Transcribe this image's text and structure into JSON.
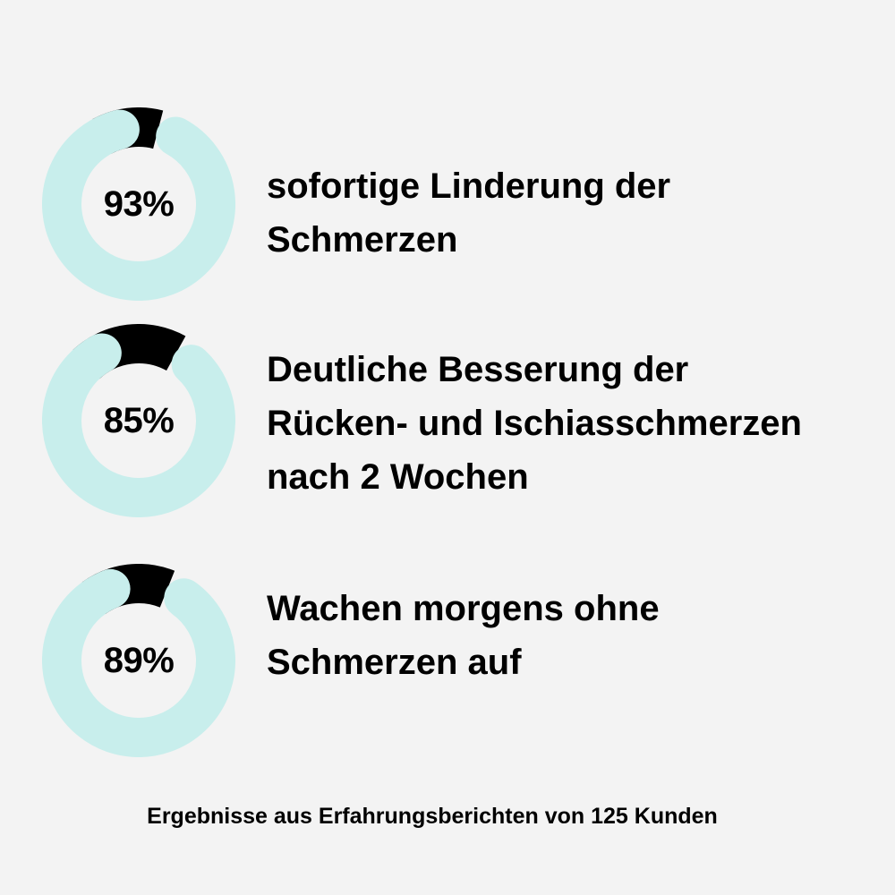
{
  "colors": {
    "background": "#f3f3f3",
    "ring": "#c8eeec",
    "remainder": "#000000",
    "text": "#000000"
  },
  "chart_data": [
    {
      "type": "pie",
      "values": [
        93
      ],
      "label": "93%",
      "description_lines": [
        "sofortige Linderung der",
        "Schmerzen"
      ]
    },
    {
      "type": "pie",
      "values": [
        85
      ],
      "label": "85%",
      "description_lines": [
        "Deutliche Besserung der",
        "Rücken- und Ischiasschmerzen",
        "nach 2 Wochen"
      ]
    },
    {
      "type": "pie",
      "values": [
        89
      ],
      "label": "89%",
      "description_lines": [
        "Wachen morgens ohne",
        "Schmerzen auf"
      ]
    }
  ],
  "footer": "Ergebnisse aus Erfahrungsberichten von 125 Kunden"
}
